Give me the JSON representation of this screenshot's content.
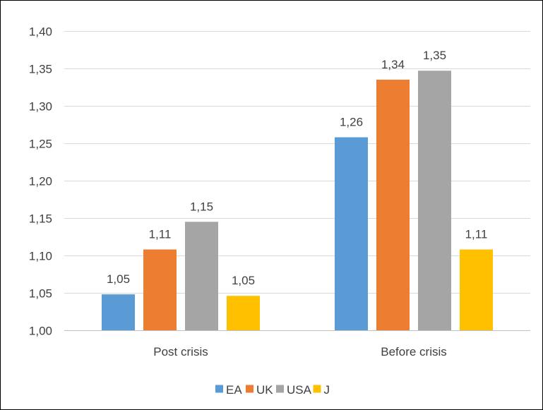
{
  "chart_data": {
    "type": "bar",
    "title": "",
    "xlabel": "",
    "ylabel": "",
    "categories": [
      "Post crisis",
      "Before crisis"
    ],
    "series": [
      {
        "name": "EA",
        "color": "#5b9bd5",
        "values": [
          1.048,
          1.258
        ],
        "labels": [
          "1,05",
          "1,26"
        ]
      },
      {
        "name": "UK",
        "color": "#ed7d31",
        "values": [
          1.108,
          1.335
        ],
        "labels": [
          "1,11",
          "1,34"
        ]
      },
      {
        "name": "USA",
        "color": "#a5a5a5",
        "values": [
          1.145,
          1.347
        ],
        "labels": [
          "1,15",
          "1,35"
        ]
      },
      {
        "name": "J",
        "color": "#ffc000",
        "values": [
          1.046,
          1.108
        ],
        "labels": [
          "1,05",
          "1,11"
        ]
      }
    ],
    "ylim": [
      1.0,
      1.4
    ],
    "yticks": [
      1.0,
      1.05,
      1.1,
      1.15,
      1.2,
      1.25,
      1.3,
      1.35,
      1.4
    ],
    "ytick_labels": [
      "1,00",
      "1,05",
      "1,10",
      "1,15",
      "1,20",
      "1,25",
      "1,30",
      "1,35",
      "1,40"
    ],
    "grid": true,
    "legend_position": "bottom"
  }
}
